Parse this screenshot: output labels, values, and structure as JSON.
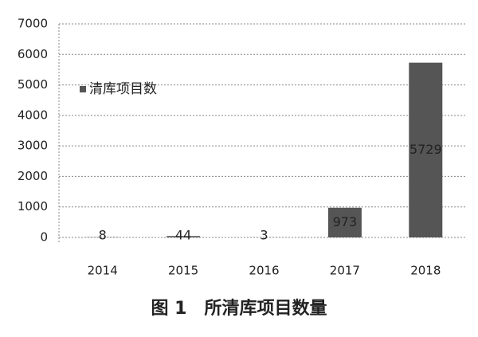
{
  "chart_data": {
    "type": "bar",
    "categories": [
      "2014",
      "2015",
      "2016",
      "2017",
      "2018"
    ],
    "series": [
      {
        "name": "清库项目数",
        "color": "#555555",
        "values": [
          8,
          44,
          3,
          973,
          5729
        ]
      }
    ],
    "ylim": [
      0,
      7000
    ],
    "yticks": [
      0,
      1000,
      2000,
      3000,
      4000,
      5000,
      6000,
      7000
    ],
    "grid": true,
    "legend": "upper left",
    "caption": "图 1　所清库项目数量"
  }
}
